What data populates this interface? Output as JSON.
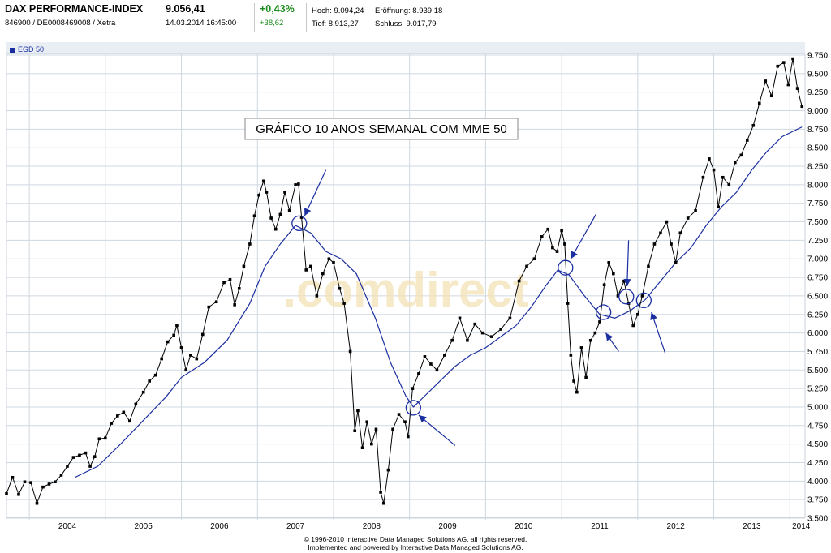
{
  "header": {
    "title": "DAX PERFORMANCE-INDEX",
    "ids": "846900 / DE0008469008 / Xetra",
    "price": "9.056,41",
    "datetime": "14.03.2014 16:45:00",
    "change_pct": "+0,43%",
    "change_abs": "+38,62",
    "hoch": "Hoch: 9.094,24",
    "tief": "Tief: 8.913,27",
    "eroeffnung": "Eröffnung: 8.939,18",
    "schluss": "Schluss: 9.017,79"
  },
  "legend_label": "EGD 50",
  "annotation": "GRÁFICO 10 ANOS SEMANAL COM MME 50",
  "watermark": ".comdirect",
  "footer": {
    "line1": "© 1996-2010 Interactive Data Managed Solutions AG, all rights reserved.",
    "line2": "Implemented and powered by Interactive Data Managed Solutions AG."
  },
  "colors": {
    "price": "#000000",
    "ema": "#1a2ea0",
    "arrow": "#1a2ea0",
    "grid": "#cfd8e0",
    "panel": "#e8eef4"
  },
  "chart_data": {
    "type": "line",
    "title": "",
    "xlabel": "",
    "ylabel": "",
    "xlim": [
      2003.7,
      2014.2
    ],
    "ylim": [
      3500,
      9750
    ],
    "y_ticks": [
      "3.500",
      "3.750",
      "4.000",
      "4.250",
      "4.500",
      "4.750",
      "5.000",
      "5.250",
      "5.500",
      "5.750",
      "6.000",
      "6.250",
      "6.500",
      "6.750",
      "7.000",
      "7.250",
      "7.500",
      "7.750",
      "8.000",
      "8.250",
      "8.500",
      "8.750",
      "9.000",
      "9.250",
      "9.500",
      "9.750"
    ],
    "x_ticks": [
      {
        "label": "2004",
        "x": 2004.0
      },
      {
        "label": "2005",
        "x": 2005.0
      },
      {
        "label": "2006",
        "x": 2006.0
      },
      {
        "label": "2007",
        "x": 2007.0
      },
      {
        "label": "2008",
        "x": 2008.0
      },
      {
        "label": "2009",
        "x": 2009.0
      },
      {
        "label": "2010",
        "x": 2010.0
      },
      {
        "label": "2011",
        "x": 2011.0
      },
      {
        "label": "2012",
        "x": 2012.0
      },
      {
        "label": "2013",
        "x": 2013.0
      },
      {
        "label": "2014",
        "x": 2014.0
      }
    ],
    "series": [
      {
        "name": "",
        "style": "line-with-markers",
        "points": [
          [
            2003.7,
            3830
          ],
          [
            2003.78,
            4050
          ],
          [
            2003.86,
            3820
          ],
          [
            2003.94,
            3990
          ],
          [
            2004.02,
            3980
          ],
          [
            2004.1,
            3700
          ],
          [
            2004.18,
            3920
          ],
          [
            2004.26,
            3960
          ],
          [
            2004.34,
            3990
          ],
          [
            2004.42,
            4080
          ],
          [
            2004.5,
            4200
          ],
          [
            2004.58,
            4320
          ],
          [
            2004.66,
            4350
          ],
          [
            2004.74,
            4380
          ],
          [
            2004.8,
            4200
          ],
          [
            2004.86,
            4330
          ],
          [
            2004.92,
            4570
          ],
          [
            2005.0,
            4580
          ],
          [
            2005.08,
            4780
          ],
          [
            2005.16,
            4880
          ],
          [
            2005.24,
            4930
          ],
          [
            2005.32,
            4810
          ],
          [
            2005.4,
            5040
          ],
          [
            2005.5,
            5200
          ],
          [
            2005.58,
            5350
          ],
          [
            2005.66,
            5430
          ],
          [
            2005.74,
            5650
          ],
          [
            2005.82,
            5880
          ],
          [
            2005.9,
            5970
          ],
          [
            2005.94,
            6100
          ],
          [
            2006.0,
            5800
          ],
          [
            2006.06,
            5500
          ],
          [
            2006.12,
            5700
          ],
          [
            2006.2,
            5650
          ],
          [
            2006.28,
            5980
          ],
          [
            2006.36,
            6350
          ],
          [
            2006.46,
            6420
          ],
          [
            2006.56,
            6680
          ],
          [
            2006.64,
            6720
          ],
          [
            2006.7,
            6380
          ],
          [
            2006.76,
            6600
          ],
          [
            2006.82,
            6900
          ],
          [
            2006.9,
            7200
          ],
          [
            2006.96,
            7580
          ],
          [
            2007.02,
            7860
          ],
          [
            2007.08,
            8050
          ],
          [
            2007.12,
            7900
          ],
          [
            2007.18,
            7550
          ],
          [
            2007.24,
            7400
          ],
          [
            2007.3,
            7600
          ],
          [
            2007.36,
            7900
          ],
          [
            2007.42,
            7650
          ],
          [
            2007.5,
            8000
          ],
          [
            2007.54,
            8010
          ],
          [
            2007.58,
            7560
          ],
          [
            2007.64,
            6850
          ],
          [
            2007.7,
            6900
          ],
          [
            2007.78,
            6500
          ],
          [
            2007.86,
            6800
          ],
          [
            2007.94,
            7000
          ],
          [
            2008.0,
            6950
          ],
          [
            2008.08,
            6600
          ],
          [
            2008.14,
            6400
          ],
          [
            2008.22,
            5750
          ],
          [
            2008.28,
            4680
          ],
          [
            2008.32,
            4950
          ],
          [
            2008.38,
            4450
          ],
          [
            2008.44,
            4800
          ],
          [
            2008.5,
            4500
          ],
          [
            2008.56,
            4700
          ],
          [
            2008.62,
            3850
          ],
          [
            2008.66,
            3700
          ],
          [
            2008.72,
            4150
          ],
          [
            2008.78,
            4700
          ],
          [
            2008.86,
            4900
          ],
          [
            2008.94,
            4800
          ],
          [
            2008.98,
            4600
          ],
          [
            2009.04,
            5250
          ],
          [
            2009.12,
            5450
          ],
          [
            2009.2,
            5680
          ],
          [
            2009.28,
            5580
          ],
          [
            2009.36,
            5500
          ],
          [
            2009.46,
            5700
          ],
          [
            2009.56,
            5900
          ],
          [
            2009.66,
            6200
          ],
          [
            2009.76,
            5900
          ],
          [
            2009.86,
            6120
          ],
          [
            2009.96,
            6000
          ],
          [
            2010.08,
            5950
          ],
          [
            2010.2,
            6050
          ],
          [
            2010.32,
            6200
          ],
          [
            2010.44,
            6700
          ],
          [
            2010.54,
            6900
          ],
          [
            2010.64,
            7000
          ],
          [
            2010.74,
            7300
          ],
          [
            2010.82,
            7400
          ],
          [
            2010.88,
            7150
          ],
          [
            2010.94,
            7100
          ],
          [
            2011.0,
            7380
          ],
          [
            2011.04,
            7200
          ],
          [
            2011.08,
            6400
          ],
          [
            2011.12,
            5700
          ],
          [
            2011.16,
            5350
          ],
          [
            2011.2,
            5200
          ],
          [
            2011.26,
            5800
          ],
          [
            2011.32,
            5400
          ],
          [
            2011.38,
            5900
          ],
          [
            2011.44,
            6000
          ],
          [
            2011.5,
            6150
          ],
          [
            2011.56,
            6650
          ],
          [
            2011.62,
            6950
          ],
          [
            2011.68,
            6800
          ],
          [
            2011.74,
            6500
          ],
          [
            2011.82,
            6700
          ],
          [
            2011.88,
            6400
          ],
          [
            2011.94,
            6100
          ],
          [
            2012.0,
            6250
          ],
          [
            2012.06,
            6500
          ],
          [
            2012.14,
            6900
          ],
          [
            2012.22,
            7200
          ],
          [
            2012.3,
            7350
          ],
          [
            2012.38,
            7500
          ],
          [
            2012.44,
            7200
          ],
          [
            2012.5,
            6950
          ],
          [
            2012.56,
            7350
          ],
          [
            2012.66,
            7550
          ],
          [
            2012.76,
            7650
          ],
          [
            2012.86,
            8100
          ],
          [
            2012.94,
            8350
          ],
          [
            2013.0,
            8200
          ],
          [
            2013.06,
            7700
          ],
          [
            2013.12,
            8100
          ],
          [
            2013.2,
            8000
          ],
          [
            2013.28,
            8300
          ],
          [
            2013.36,
            8400
          ],
          [
            2013.44,
            8600
          ],
          [
            2013.52,
            8800
          ],
          [
            2013.6,
            9100
          ],
          [
            2013.68,
            9400
          ],
          [
            2013.76,
            9200
          ],
          [
            2013.84,
            9600
          ],
          [
            2013.92,
            9650
          ],
          [
            2013.98,
            9350
          ],
          [
            2014.04,
            9700
          ],
          [
            2014.1,
            9300
          ],
          [
            2014.16,
            9057
          ]
        ]
      },
      {
        "name": "EGD 50",
        "style": "line",
        "points": [
          [
            2004.6,
            4050
          ],
          [
            2004.9,
            4200
          ],
          [
            2005.2,
            4500
          ],
          [
            2005.5,
            4820
          ],
          [
            2005.8,
            5140
          ],
          [
            2006.0,
            5400
          ],
          [
            2006.3,
            5600
          ],
          [
            2006.6,
            5900
          ],
          [
            2006.9,
            6400
          ],
          [
            2007.1,
            6900
          ],
          [
            2007.3,
            7200
          ],
          [
            2007.5,
            7450
          ],
          [
            2007.7,
            7350
          ],
          [
            2007.9,
            7100
          ],
          [
            2008.1,
            7000
          ],
          [
            2008.3,
            6800
          ],
          [
            2008.55,
            6200
          ],
          [
            2008.75,
            5600
          ],
          [
            2008.95,
            5150
          ],
          [
            2009.05,
            5000
          ],
          [
            2009.2,
            5150
          ],
          [
            2009.4,
            5350
          ],
          [
            2009.6,
            5550
          ],
          [
            2009.8,
            5700
          ],
          [
            2010.0,
            5800
          ],
          [
            2010.2,
            5950
          ],
          [
            2010.4,
            6100
          ],
          [
            2010.6,
            6350
          ],
          [
            2010.8,
            6650
          ],
          [
            2010.95,
            6850
          ],
          [
            2011.1,
            6780
          ],
          [
            2011.3,
            6500
          ],
          [
            2011.5,
            6250
          ],
          [
            2011.7,
            6200
          ],
          [
            2011.9,
            6300
          ],
          [
            2012.1,
            6450
          ],
          [
            2012.3,
            6700
          ],
          [
            2012.5,
            6950
          ],
          [
            2012.7,
            7150
          ],
          [
            2012.9,
            7450
          ],
          [
            2013.1,
            7700
          ],
          [
            2013.3,
            7900
          ],
          [
            2013.5,
            8200
          ],
          [
            2013.7,
            8450
          ],
          [
            2013.9,
            8650
          ],
          [
            2014.16,
            8780
          ]
        ]
      }
    ],
    "markers": {
      "circles": [
        [
          2007.55,
          7480
        ],
        [
          2009.05,
          4990
        ],
        [
          2011.05,
          6880
        ],
        [
          2011.55,
          6280
        ],
        [
          2011.85,
          6490
        ],
        [
          2012.08,
          6440
        ]
      ],
      "arrows": [
        {
          "from": [
            2007.9,
            8200
          ],
          "to": [
            2007.62,
            7580
          ]
        },
        {
          "from": [
            2009.6,
            4480
          ],
          "to": [
            2009.12,
            4890
          ]
        },
        {
          "from": [
            2011.45,
            7600
          ],
          "to": [
            2011.12,
            7000
          ]
        },
        {
          "from": [
            2011.75,
            5750
          ],
          "to": [
            2011.58,
            6000
          ]
        },
        {
          "from": [
            2011.88,
            7250
          ],
          "to": [
            2011.86,
            6630
          ]
        },
        {
          "from": [
            2012.36,
            5730
          ],
          "to": [
            2012.18,
            6280
          ]
        }
      ]
    }
  }
}
